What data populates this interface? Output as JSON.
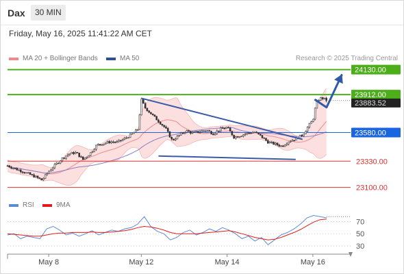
{
  "header": {
    "symbol": "Dax",
    "timeframe": "30 MIN"
  },
  "datetime": "Friday, May 16, 2025 11:41:22 AM CET",
  "legend": {
    "bollinger": {
      "label": "MA 20 + Bollinger Bands",
      "color": "#f08a8a"
    },
    "ma50": {
      "label": "MA 50",
      "color": "#2f4f8f"
    }
  },
  "credit": "Research © 2025 Trading Central",
  "rsi_legend": {
    "rsi": {
      "label": "RSI",
      "color": "#5b8ad6"
    },
    "ma9": {
      "label": "9MA",
      "color": "#e01b1b"
    }
  },
  "chart_data": {
    "type": "candlestick",
    "price_ylim": [
      23050,
      24200
    ],
    "x_range": [
      0,
      100
    ],
    "x_ticks": [
      {
        "x": 12,
        "label": "May 8"
      },
      {
        "x": 39,
        "label": "May 12"
      },
      {
        "x": 64,
        "label": "May 14"
      },
      {
        "x": 89,
        "label": "May 16"
      }
    ],
    "levels": [
      {
        "value": 24130,
        "label": "24130.00",
        "kind": "resistance",
        "color": "#4caf1a"
      },
      {
        "value": 23912,
        "label": "23912.00",
        "kind": "resistance",
        "color": "#4caf1a"
      },
      {
        "value": 23580,
        "label": "23580.00",
        "kind": "pivot",
        "color": "#1a66e0"
      },
      {
        "value": 23330,
        "label": "23330.00",
        "kind": "support",
        "color": "#e03030"
      },
      {
        "value": 23100,
        "label": "23100.00",
        "kind": "support",
        "color": "#e03030"
      }
    ],
    "last_price": {
      "value": 23883.52,
      "label": "23883.52"
    },
    "triangle": {
      "upper": [
        [
          39,
          23880
        ],
        [
          86,
          23520
        ]
      ],
      "lower": [
        [
          44,
          23375
        ],
        [
          84,
          23345
        ]
      ]
    },
    "projection": [
      [
        89.5,
        23870
      ],
      [
        93,
        23800
      ],
      [
        97.5,
        24090
      ]
    ],
    "close_path": [
      [
        0,
        23290
      ],
      [
        2,
        23265
      ],
      [
        4,
        23245
      ],
      [
        6,
        23220
      ],
      [
        8,
        23195
      ],
      [
        10,
        23165
      ],
      [
        12,
        23240
      ],
      [
        14,
        23300
      ],
      [
        16,
        23355
      ],
      [
        18,
        23395
      ],
      [
        20,
        23405
      ],
      [
        22,
        23345
      ],
      [
        24,
        23395
      ],
      [
        26,
        23470
      ],
      [
        28,
        23485
      ],
      [
        30,
        23500
      ],
      [
        32,
        23495
      ],
      [
        34,
        23525
      ],
      [
        36,
        23560
      ],
      [
        38,
        23610
      ],
      [
        39,
        23870
      ],
      [
        40,
        23800
      ],
      [
        42,
        23740
      ],
      [
        44,
        23680
      ],
      [
        46,
        23620
      ],
      [
        48,
        23510
      ],
      [
        50,
        23555
      ],
      [
        52,
        23595
      ],
      [
        54,
        23575
      ],
      [
        56,
        23590
      ],
      [
        58,
        23600
      ],
      [
        60,
        23570
      ],
      [
        62,
        23610
      ],
      [
        64,
        23625
      ],
      [
        66,
        23540
      ],
      [
        68,
        23555
      ],
      [
        70,
        23575
      ],
      [
        72,
        23585
      ],
      [
        74,
        23545
      ],
      [
        76,
        23495
      ],
      [
        78,
        23480
      ],
      [
        80,
        23460
      ],
      [
        82,
        23505
      ],
      [
        84,
        23525
      ],
      [
        86,
        23560
      ],
      [
        88,
        23650
      ],
      [
        89,
        23690
      ],
      [
        90,
        23840
      ],
      [
        91,
        23880
      ],
      [
        92,
        23880
      ],
      [
        93,
        23860
      ]
    ],
    "rsi": {
      "ylim": [
        20,
        85
      ],
      "ticks": [
        70,
        50,
        30
      ],
      "rsi_values": [
        48,
        50,
        42,
        46,
        44,
        42,
        58,
        62,
        56,
        48,
        51,
        46,
        50,
        55,
        48,
        52,
        56,
        54,
        58,
        60,
        66,
        78,
        62,
        54,
        50,
        40,
        44,
        52,
        56,
        48,
        52,
        58,
        54,
        60,
        56,
        50,
        42,
        46,
        38,
        44,
        32,
        40,
        48,
        52,
        58,
        66,
        76,
        80,
        78,
        76
      ],
      "ma9_values": [
        50,
        49,
        48,
        47,
        46,
        46,
        48,
        50,
        51,
        51,
        52,
        52,
        52,
        53,
        52,
        52,
        53,
        54,
        55,
        57,
        60,
        62,
        61,
        59,
        56,
        52,
        50,
        50,
        50,
        50,
        51,
        52,
        53,
        54,
        55,
        53,
        50,
        47,
        44,
        42,
        40,
        41,
        44,
        48,
        52,
        57,
        63,
        69,
        73,
        74
      ],
      "last_value": 78
    }
  }
}
